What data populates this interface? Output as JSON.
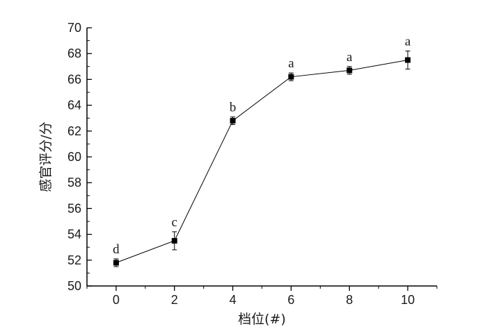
{
  "chart_data": {
    "type": "line",
    "title": "",
    "xlabel": "档位(#)",
    "ylabel": "感官评分/分",
    "xlim": [
      -1,
      11
    ],
    "ylim": [
      50,
      70
    ],
    "xticks": [
      0,
      2,
      4,
      6,
      8,
      10
    ],
    "yticks": [
      50,
      52,
      54,
      56,
      58,
      60,
      62,
      64,
      66,
      68,
      70
    ],
    "grid": false,
    "series": [
      {
        "x": [
          0,
          2,
          4,
          6,
          8,
          10
        ],
        "y": [
          51.8,
          53.5,
          62.8,
          66.2,
          66.7,
          67.5
        ],
        "error": [
          0.3,
          0.7,
          0.3,
          0.3,
          0.3,
          0.7
        ],
        "labels": [
          "d",
          "c",
          "b",
          "a",
          "a",
          "a"
        ],
        "color": "#000000",
        "marker": "square"
      }
    ]
  }
}
